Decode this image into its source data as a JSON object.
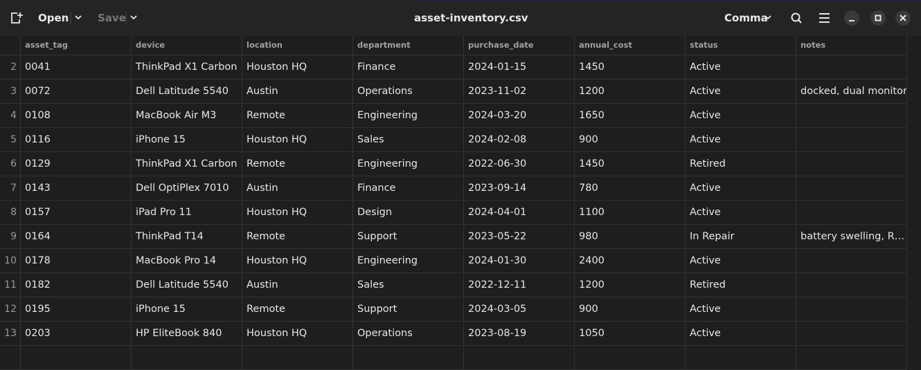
{
  "toolbar": {
    "open": "Open",
    "save": "Save",
    "file_name": "asset-inventory.csv",
    "delimiter": "Comma"
  },
  "table": {
    "columns": [
      "asset_tag",
      "device",
      "location",
      "department",
      "purchase_date",
      "annual_cost",
      "status",
      "notes"
    ],
    "row_numbers": [
      2,
      3,
      4,
      5,
      6,
      7,
      8,
      9,
      10,
      11,
      12,
      13
    ],
    "rows": [
      [
        "0041",
        "ThinkPad X1 Carbon",
        "Houston HQ",
        "Finance",
        "2024-01-15",
        "1450",
        "Active",
        null
      ],
      [
        "0072",
        "Dell Latitude 5540",
        "Austin",
        "Operations",
        "2023-11-02",
        "1200",
        "Active",
        "docked, dual monitor"
      ],
      [
        "0108",
        "MacBook Air M3",
        "Remote",
        "Engineering",
        "2024-03-20",
        "1650",
        "Active",
        null
      ],
      [
        "0116",
        "iPhone 15",
        "Houston HQ",
        "Sales",
        "2024-02-08",
        "900",
        "Active",
        null
      ],
      [
        "0129",
        "ThinkPad X1 Carbon",
        "Remote",
        "Engineering",
        "2022-06-30",
        "1450",
        "Retired",
        null
      ],
      [
        "0143",
        "Dell OptiPlex 7010",
        "Austin",
        "Finance",
        "2023-09-14",
        "780",
        "Active",
        null
      ],
      [
        "0157",
        "iPad Pro 11",
        "Houston HQ",
        "Design",
        "2024-04-01",
        "1100",
        "Active",
        null
      ],
      [
        "0164",
        "ThinkPad T14",
        "Remote",
        "Support",
        "2023-05-22",
        "980",
        "In Repair",
        "battery swelling, R…"
      ],
      [
        "0178",
        "MacBook Pro 14",
        "Houston HQ",
        "Engineering",
        "2024-01-30",
        "2400",
        "Active",
        null
      ],
      [
        "0182",
        "Dell Latitude 5540",
        "Austin",
        "Sales",
        "2022-12-11",
        "1200",
        "Retired",
        null
      ],
      [
        "0195",
        "iPhone 15",
        "Remote",
        "Support",
        "2024-03-05",
        "900",
        "Active",
        null
      ],
      [
        "0203",
        "HP EliteBook 840",
        "Houston HQ",
        "Operations",
        "2023-08-19",
        "1050",
        "Active",
        null
      ]
    ]
  }
}
